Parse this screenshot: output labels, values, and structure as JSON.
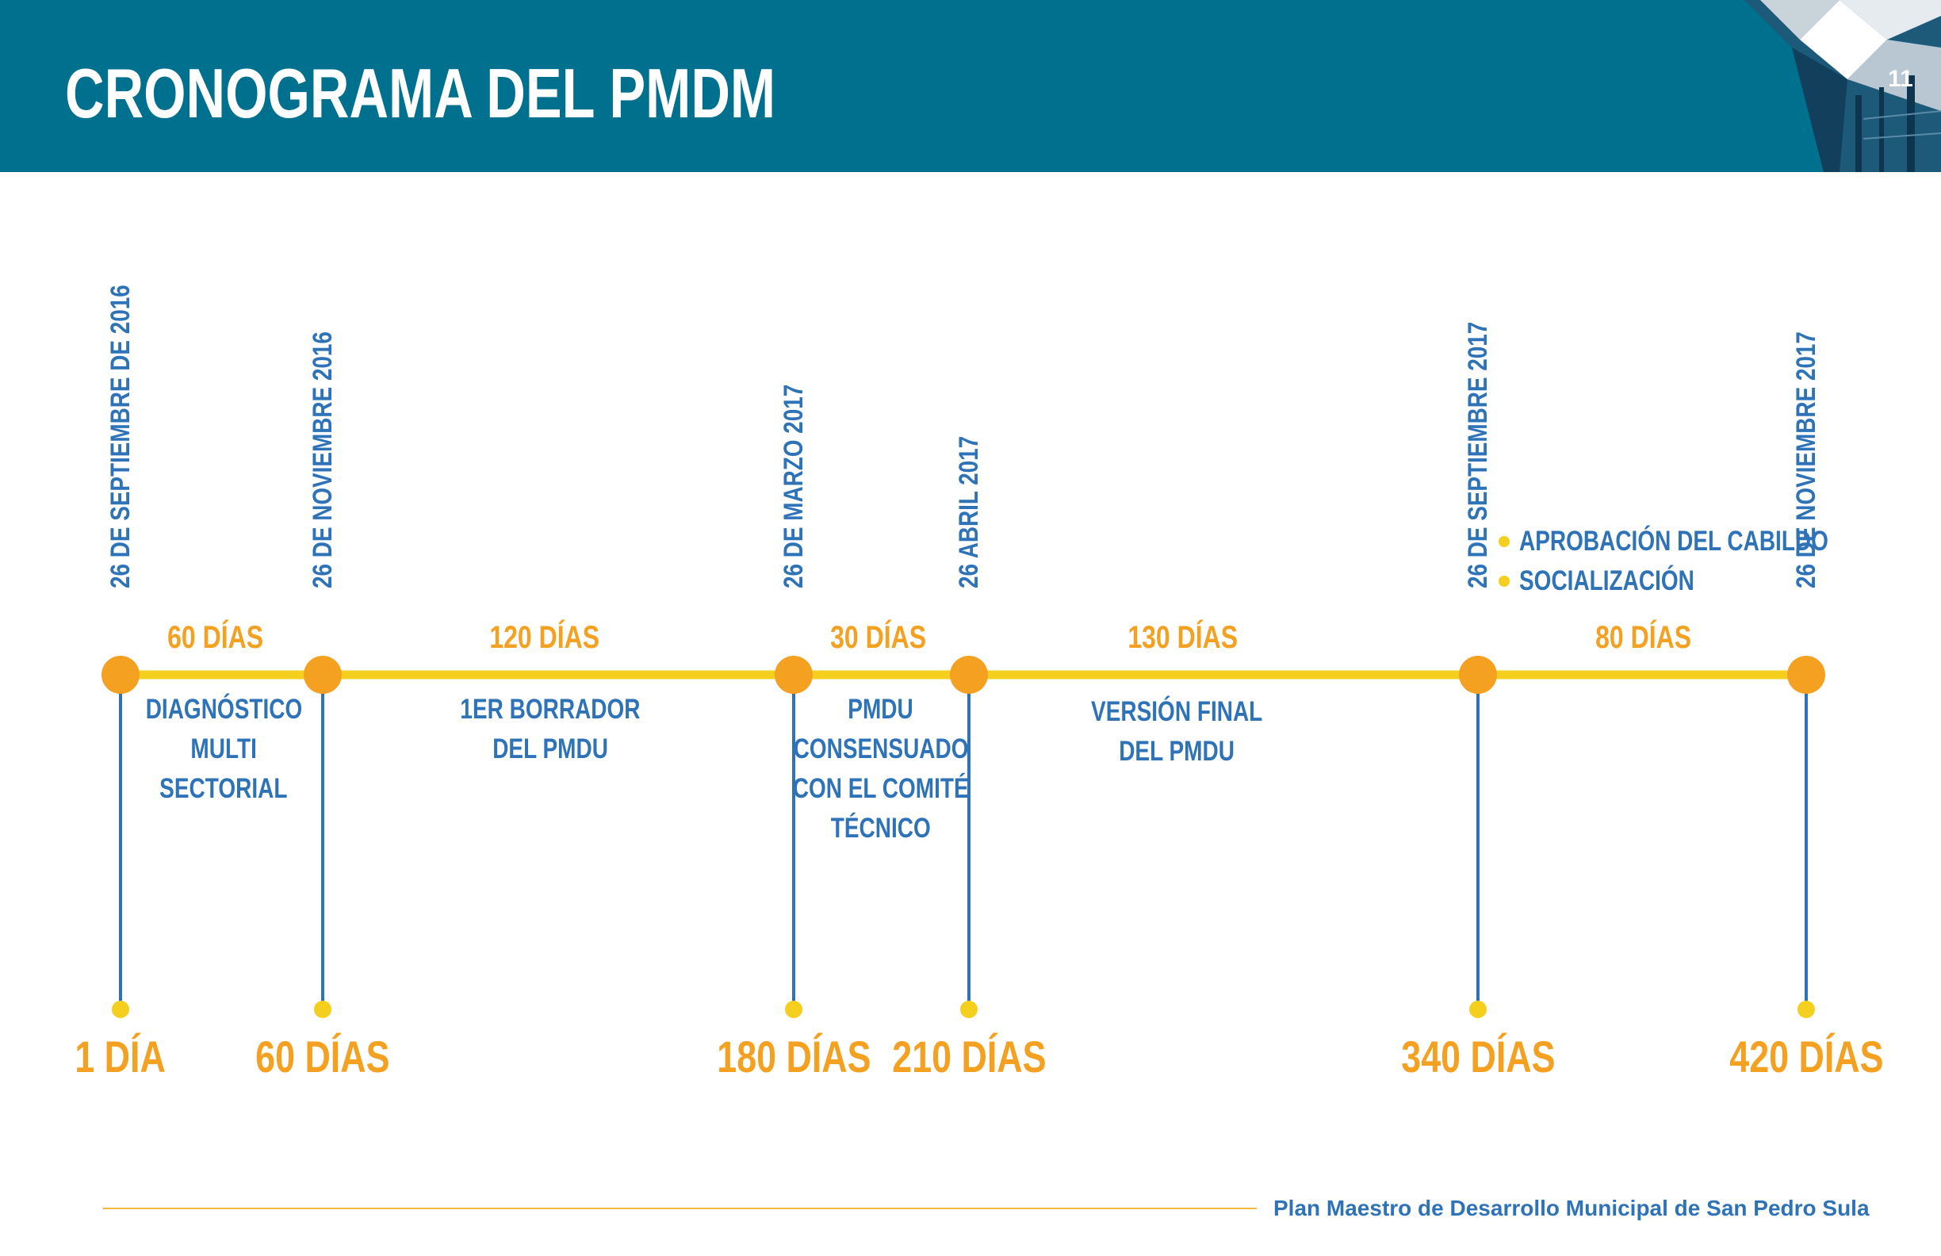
{
  "header": {
    "title": "CRONOGRAMA DEL PMDM",
    "page_number": "11"
  },
  "timeline": {
    "milestones": [
      {
        "date": "26 DE  SEPTIEMBRE DE  2016",
        "day_label": "1 DÍA"
      },
      {
        "date": "26 DE NOVIEMBRE 2016",
        "day_label": "60 DÍAS"
      },
      {
        "date": "26 DE MARZO 2017",
        "day_label": "180 DÍAS"
      },
      {
        "date": "26 ABRIL 2017",
        "day_label": "210 DÍAS"
      },
      {
        "date": "26 DE SEPTIEMBRE 2017",
        "day_label": "340 DÍAS"
      },
      {
        "date": "26 DE NOVIEMBRE 2017",
        "day_label": "420 DÍAS"
      }
    ],
    "segments": [
      {
        "duration": "60 DÍAS",
        "phase_lines": [
          "DIAGNÓSTICO",
          "MULTI",
          "SECTORIAL"
        ]
      },
      {
        "duration": "120 DÍAS",
        "phase_lines": [
          "1ER BORRADOR",
          "DEL PMDU"
        ]
      },
      {
        "duration": "30 DÍAS",
        "phase_lines": [
          "PMDU",
          "CONSENSUADO",
          "CON EL COMITÉ",
          "TÉCNICO"
        ]
      },
      {
        "duration": "130 DÍAS",
        "phase_lines": [
          "VERSIÓN FINAL",
          "DEL PMDU"
        ]
      },
      {
        "duration": "80 DÍAS",
        "bullets": [
          "APROBACIÓN DEL CABILDO",
          "SOCIALIZACIÓN"
        ]
      }
    ]
  },
  "footer": {
    "text": "Plan Maestro de Desarrollo Municipal de San Pedro Sula"
  },
  "colors": {
    "header_bg": "#00708f",
    "accent_orange": "#f4a020",
    "line_yellow": "#f5cf1e",
    "text_blue": "#2e72b8"
  }
}
